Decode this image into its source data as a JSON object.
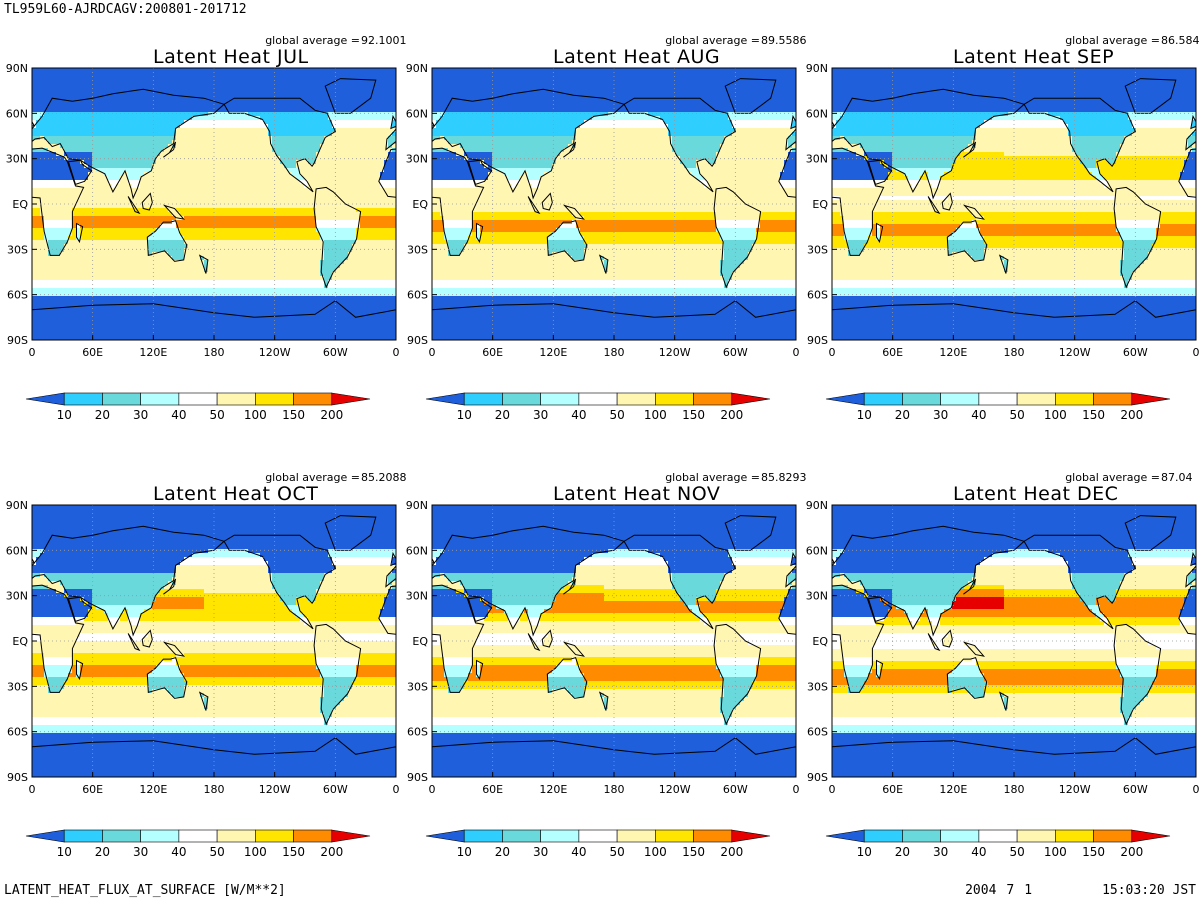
{
  "header": {
    "run_title": "TL959L60-AJRDCAGV:200801-201712"
  },
  "footer": {
    "field_name": "LATENT_HEAT_FLUX_AT_SURFACE [W/M**2]",
    "date_year": "2004",
    "date_month": "7",
    "date_day": "1",
    "time": "15:03:20 JST"
  },
  "chart_data": [
    {
      "type": "heatmap",
      "title": "Latent Heat   JUL",
      "global_average_label": "global average =",
      "global_average": "92.1001"
    },
    {
      "type": "heatmap",
      "title": "Latent Heat   AUG",
      "global_average_label": "global average =",
      "global_average": "89.5586"
    },
    {
      "type": "heatmap",
      "title": "Latent Heat   SEP",
      "global_average_label": "global average =",
      "global_average": "86.5843"
    },
    {
      "type": "heatmap",
      "title": "Latent Heat   OCT",
      "global_average_label": "global average =",
      "global_average": "85.2088"
    },
    {
      "type": "heatmap",
      "title": "Latent Heat   NOV",
      "global_average_label": "global average =",
      "global_average": "85.8293"
    },
    {
      "type": "heatmap",
      "title": "Latent Heat   DEC",
      "global_average_label": "global average =",
      "global_average": "87.04"
    }
  ],
  "axes": {
    "x_ticks": [
      "0",
      "60E",
      "120E",
      "180",
      "120W",
      "60W",
      "0"
    ],
    "y_ticks": [
      "90N",
      "60N",
      "30N",
      "EQ",
      "30S",
      "60S",
      "90S"
    ],
    "grid": "dotted",
    "xlim": [
      0,
      360
    ],
    "ylim": [
      -90,
      90
    ]
  },
  "colorbar": {
    "labels": [
      "10",
      "20",
      "30",
      "40",
      "50",
      "100",
      "150",
      "200"
    ],
    "colors": [
      "#1f5fdc",
      "#2ecfff",
      "#69d9dc",
      "#b4ffff",
      "#ffffff",
      "#fff6b2",
      "#ffe500",
      "#ff8c00",
      "#e60000"
    ]
  },
  "colors": {
    "land": "#ffffff",
    "coast": "#000000"
  }
}
